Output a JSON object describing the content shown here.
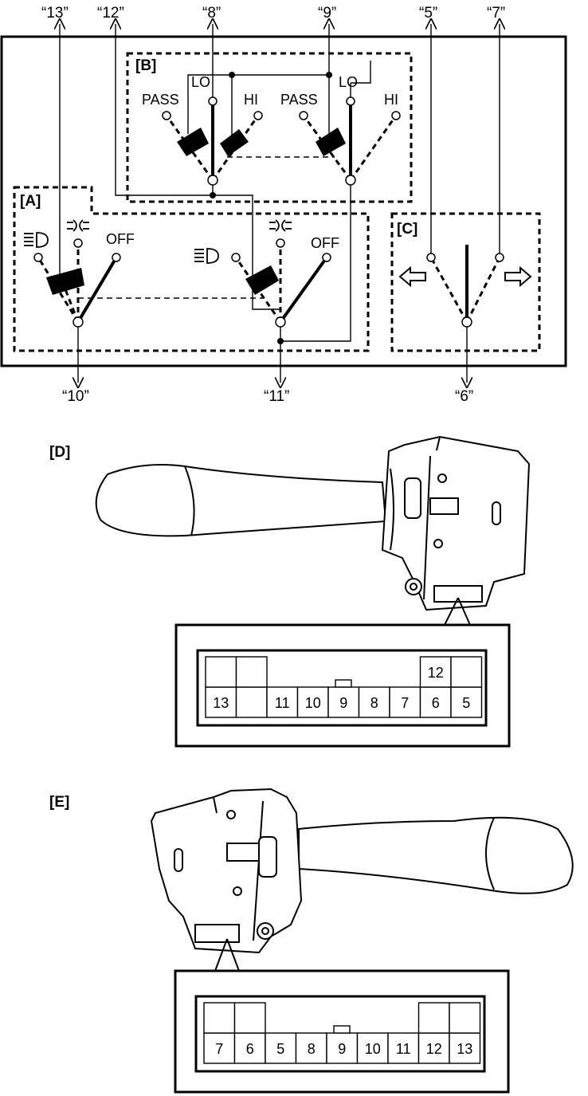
{
  "terminals": {
    "t13": "“13”",
    "t12": "“12”",
    "t8": "“8”",
    "t9": "“9”",
    "t5": "“5”",
    "t7": "“7”",
    "t10": "“10”",
    "t11": "“11”",
    "t6": "“6”"
  },
  "sections": {
    "a": "[A]",
    "b": "[B]",
    "c": "[C]",
    "d": "[D]",
    "e": "[E]"
  },
  "switch_labels": {
    "pass": "PASS",
    "lo": "LO",
    "hi": "HI",
    "off": "OFF"
  },
  "connector_d": {
    "top_pins": [
      "",
      "",
      "12",
      ""
    ],
    "bottom_pins": [
      "13",
      "",
      "11",
      "10",
      "9",
      "8",
      "7",
      "6",
      "5"
    ]
  },
  "connector_e": {
    "top_pins": [
      "",
      "",
      "",
      ""
    ],
    "bottom_pins": [
      "7",
      "6",
      "5",
      "8",
      "9",
      "10",
      "11",
      "12",
      "13"
    ]
  },
  "icons": [
    "headlight-icon",
    "parking-light-icon",
    "left-arrow-icon",
    "right-arrow-icon"
  ]
}
